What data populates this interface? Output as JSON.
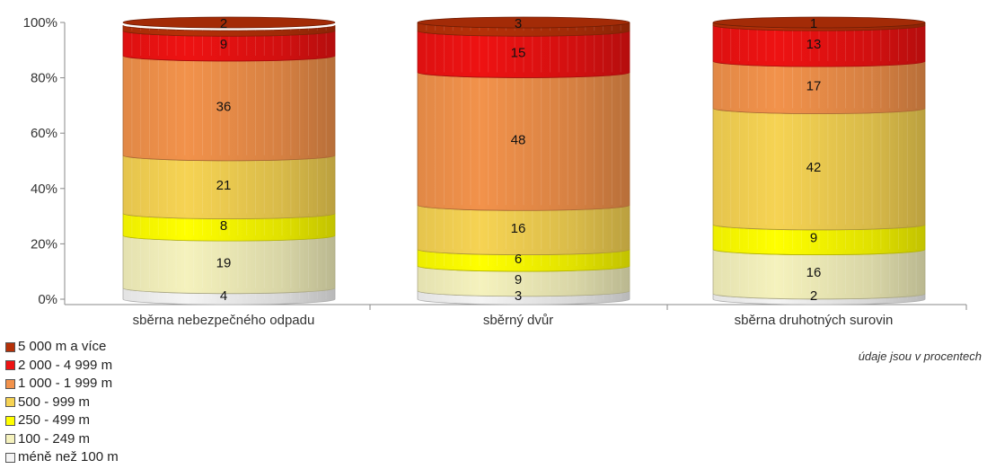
{
  "chart_data": {
    "type": "bar",
    "stacked": true,
    "percent": true,
    "style": "3d-cylinder",
    "categories": [
      "sběrna nebezpečného odpadu",
      "sběrný dvůr",
      "sběrna druhotných surovin"
    ],
    "series": [
      {
        "name": "méně než 100 m",
        "color": "#f4f4f4",
        "values": [
          4,
          3,
          2
        ]
      },
      {
        "name": "100 - 249 m",
        "color": "#f5f2bd",
        "values": [
          19,
          9,
          16
        ]
      },
      {
        "name": "250 - 499 m",
        "color": "#ffff00",
        "values": [
          8,
          6,
          9
        ]
      },
      {
        "name": "500 - 999 m",
        "color": "#f6d353",
        "values": [
          21,
          16,
          42
        ]
      },
      {
        "name": "1 000 - 1 999 m",
        "color": "#f2924b",
        "values": [
          36,
          48,
          17
        ]
      },
      {
        "name": "2 000 - 4 999 m",
        "color": "#ee1212",
        "values": [
          9,
          15,
          13
        ]
      },
      {
        "name": "5 000 m a více",
        "color": "#b53008",
        "values": [
          2,
          3,
          1
        ]
      }
    ],
    "yticks": [
      "0%",
      "20%",
      "40%",
      "60%",
      "80%",
      "100%"
    ],
    "ylim": [
      0,
      100
    ],
    "note": "údaje jsou v procentech",
    "legend_position": "bottom-left"
  }
}
